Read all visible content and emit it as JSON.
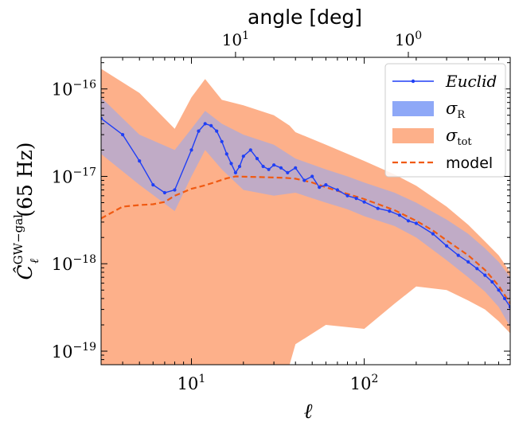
{
  "chart_data": {
    "type": "line",
    "xscale": "log",
    "yscale": "log",
    "xlim": [
      3,
      700
    ],
    "ylim": [
      7e-20,
      2.3e-16
    ],
    "xlabel": "ℓ",
    "ylabel": "Ĉ",
    "ylabel_sub": "ℓ",
    "ylabel_sup": "GW−gal",
    "ylabel_suffix": "(65 Hz)",
    "top_axis_label": "angle [deg]",
    "top_ticks": [
      {
        "label_base": "10",
        "label_exp": "1",
        "ell": 18
      },
      {
        "label_base": "10",
        "label_exp": "0",
        "ell": 180
      }
    ],
    "x_ticks": [
      {
        "value": 10,
        "base": "10",
        "exp": "1"
      },
      {
        "value": 100,
        "base": "10",
        "exp": "2"
      }
    ],
    "y_ticks": [
      {
        "value": 1e-16,
        "base": "10",
        "exp": "−16"
      },
      {
        "value": 1e-17,
        "base": "10",
        "exp": "−17"
      },
      {
        "value": 1e-18,
        "base": "10",
        "exp": "−18"
      },
      {
        "value": 1e-19,
        "base": "10",
        "exp": "−19"
      }
    ],
    "legend": {
      "placement": "top-right",
      "entries": [
        {
          "label": "Euclid",
          "style": "line-marker",
          "color": "#1f3ff5"
        },
        {
          "label": "σ",
          "sub": "R",
          "style": "patch",
          "color": "#8ea8f7"
        },
        {
          "label": "σ",
          "sub": "tot",
          "style": "patch",
          "color": "#fdb08a"
        },
        {
          "label": "model",
          "style": "dashed",
          "color": "#f05a12"
        }
      ]
    },
    "series": [
      {
        "name": "Euclid",
        "color": "#1f3ff5",
        "x": [
          3,
          4,
          5,
          6,
          7,
          8,
          10,
          11,
          12,
          13,
          14,
          15,
          16,
          17,
          18,
          19,
          20,
          22,
          24,
          26,
          28,
          30,
          33,
          36,
          40,
          45,
          50,
          55,
          60,
          70,
          80,
          90,
          100,
          120,
          140,
          160,
          180,
          200,
          250,
          300,
          350,
          400,
          450,
          500,
          550,
          600,
          650,
          700
        ],
        "values": [
          4.6e-17,
          3e-17,
          1.5e-17,
          8e-18,
          6.5e-18,
          7e-18,
          2e-17,
          3.3e-17,
          4e-17,
          3.8e-17,
          3.3e-17,
          2.5e-17,
          1.8e-17,
          1.4e-17,
          1.1e-17,
          1.3e-17,
          1.7e-17,
          2e-17,
          1.6e-17,
          1.3e-17,
          1.2e-17,
          1.35e-17,
          1.25e-17,
          1.1e-17,
          1.25e-17,
          9e-18,
          1e-17,
          7.5e-18,
          8e-18,
          7e-18,
          6e-18,
          5.6e-18,
          5.1e-18,
          4.3e-18,
          4e-18,
          3.6e-18,
          3.1e-18,
          2.9e-18,
          2.2e-18,
          1.6e-18,
          1.25e-18,
          1.05e-18,
          8.8e-19,
          7.4e-19,
          6.2e-19,
          5e-19,
          4e-19,
          3.2e-19
        ]
      },
      {
        "name": "model",
        "color": "#f05a12",
        "x": [
          3,
          4,
          5,
          6,
          7,
          8,
          10,
          12,
          14,
          16,
          18,
          20,
          25,
          30,
          35,
          40,
          50,
          60,
          80,
          100,
          150,
          200,
          250,
          300,
          400,
          500,
          600,
          700
        ],
        "values": [
          3.3e-18,
          4.5e-18,
          4.7e-18,
          4.8e-18,
          5.1e-18,
          6e-18,
          7.2e-18,
          7.9e-18,
          8.7e-18,
          9.5e-18,
          1e-17,
          9.9e-18,
          9.8e-18,
          9.7e-18,
          9.6e-18,
          9.4e-18,
          8.5e-18,
          7.5e-18,
          6.3e-18,
          5.5e-18,
          4.1e-18,
          3.1e-18,
          2.4e-18,
          1.85e-18,
          1.25e-18,
          8.5e-19,
          5.6e-19,
          3.5e-19
        ]
      }
    ],
    "bands": [
      {
        "name": "σ_R",
        "color": "#8ea8f7",
        "x": [
          3,
          5,
          8,
          10,
          12,
          15,
          20,
          30,
          40,
          60,
          80,
          100,
          150,
          200,
          300,
          400,
          500,
          600,
          700
        ],
        "lower": [
          1.8e-17,
          8e-18,
          4e-18,
          1e-17,
          2e-17,
          1.2e-17,
          7e-18,
          6e-18,
          6.5e-18,
          5e-18,
          4.2e-18,
          3.5e-18,
          2.7e-18,
          2e-18,
          1.1e-18,
          7e-19,
          4.8e-19,
          3.2e-19,
          1.9e-19
        ],
        "upper": [
          8e-17,
          3e-17,
          2e-17,
          3.5e-17,
          5.6e-17,
          4e-17,
          3e-17,
          2.3e-17,
          1.6e-17,
          1.2e-17,
          1e-17,
          8.5e-18,
          6.5e-18,
          5e-18,
          3.2e-18,
          2.2e-18,
          1.5e-18,
          1.05e-18,
          7e-19
        ]
      },
      {
        "name": "σ_tot",
        "color": "#fdb08a",
        "x": [
          3,
          5,
          8,
          10,
          12,
          15,
          20,
          30,
          37,
          40,
          60,
          100,
          150,
          200,
          300,
          400,
          500,
          600,
          700
        ],
        "lower": [
          7e-20,
          7e-20,
          7e-20,
          7e-20,
          7e-20,
          7e-20,
          7e-20,
          7e-20,
          7e-20,
          1.2e-19,
          2e-19,
          1.8e-19,
          3.5e-19,
          5.5e-19,
          5e-19,
          3.8e-19,
          3e-19,
          2.2e-19,
          1.6e-19
        ],
        "upper": [
          1.7e-16,
          9e-17,
          3.5e-17,
          8e-17,
          1.3e-16,
          7.5e-17,
          6.5e-17,
          5e-17,
          3.8e-17,
          3.2e-17,
          2.3e-17,
          1.5e-17,
          1.05e-17,
          7.8e-18,
          4.5e-18,
          2.8e-18,
          1.8e-18,
          1.25e-18,
          8e-19
        ]
      }
    ]
  }
}
